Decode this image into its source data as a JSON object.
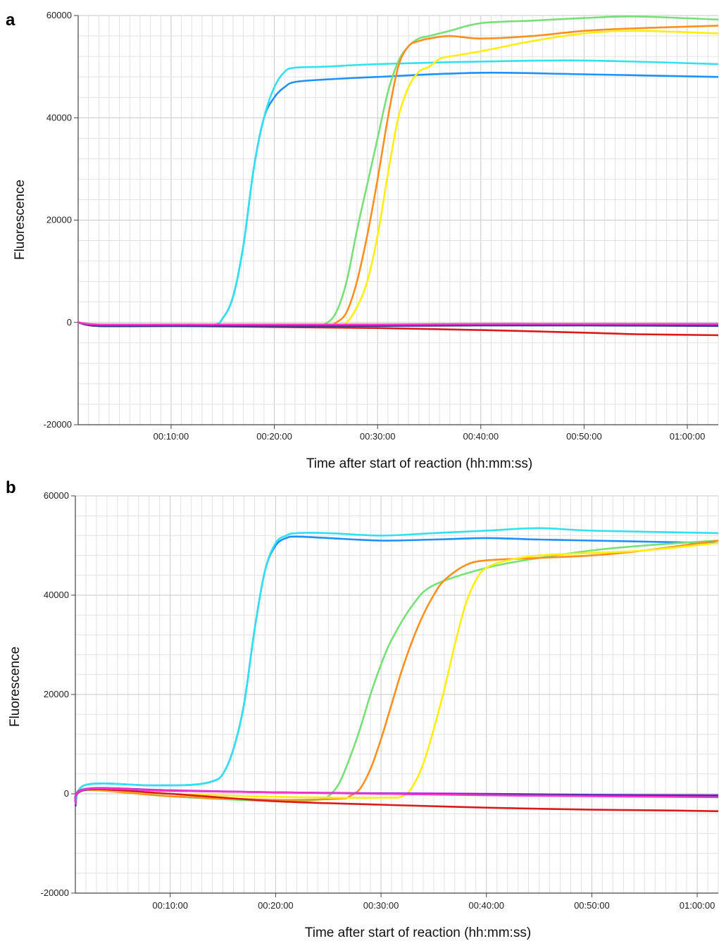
{
  "chart_data": [
    {
      "type": "line",
      "panel": "a",
      "xlabel": "Time after start of reaction (hh:mm:ss)",
      "ylabel": "Fluorescence",
      "ylim": [
        -20000,
        60000
      ],
      "xlim": [
        1,
        63
      ],
      "grid": true,
      "yticks": [
        -20000,
        0,
        20000,
        40000,
        60000
      ],
      "yticklabels": [
        "-20000",
        "0",
        "20000",
        "40000",
        "60000"
      ],
      "xticks": [
        10,
        20,
        30,
        40,
        50,
        60
      ],
      "xticklabels": [
        "00:10:00",
        "00:20:00",
        "00:30:00",
        "00:40:00",
        "00:50:00",
        "01:00:00"
      ],
      "series": [
        {
          "color": "#1e90ff",
          "x": [
            1,
            3,
            10,
            14,
            15,
            16,
            17,
            18,
            19,
            20,
            21,
            22,
            25,
            30,
            40,
            50,
            63
          ],
          "y": [
            0,
            -700,
            -700,
            -500,
            800,
            5000,
            15000,
            30000,
            40000,
            44000,
            46000,
            47000,
            47500,
            48000,
            48800,
            48500,
            48000
          ]
        },
        {
          "color": "#33e0f0",
          "x": [
            1,
            3,
            10,
            14,
            15,
            16,
            17,
            18,
            19,
            20,
            21,
            22,
            25,
            30,
            40,
            50,
            63
          ],
          "y": [
            0,
            -700,
            -700,
            -500,
            800,
            5000,
            15000,
            30000,
            40000,
            46000,
            49000,
            49800,
            50000,
            50500,
            51000,
            51200,
            50500
          ]
        },
        {
          "color": "#77e077",
          "x": [
            1,
            3,
            10,
            20,
            24,
            25,
            26,
            27,
            28,
            29,
            30,
            31,
            32,
            33,
            34,
            35,
            37,
            40,
            45,
            50,
            55,
            63
          ],
          "y": [
            0,
            -700,
            -700,
            -700,
            -600,
            -200,
            2000,
            8000,
            18000,
            27000,
            36000,
            45000,
            51000,
            54000,
            55500,
            56000,
            57000,
            58500,
            59000,
            59500,
            59800,
            59200
          ]
        },
        {
          "color": "#ff9020",
          "x": [
            1,
            3,
            10,
            20,
            25,
            26,
            27,
            28,
            29,
            30,
            31,
            32,
            33,
            34,
            35,
            37,
            40,
            45,
            50,
            55,
            63
          ],
          "y": [
            0,
            -700,
            -700,
            -700,
            -600,
            0,
            2000,
            8000,
            17000,
            28000,
            40000,
            50000,
            54000,
            55000,
            55500,
            56000,
            55500,
            56000,
            57000,
            57500,
            58000
          ]
        },
        {
          "color": "#ffee10",
          "x": [
            1,
            3,
            10,
            20,
            26,
            27,
            28,
            29,
            30,
            31,
            32,
            33,
            34,
            35,
            36,
            37,
            40,
            45,
            50,
            55,
            63
          ],
          "y": [
            0,
            -700,
            -700,
            -700,
            -600,
            0,
            3000,
            8000,
            17000,
            29000,
            40000,
            46000,
            49000,
            50000,
            51500,
            52000,
            53000,
            55000,
            56500,
            57000,
            56500
          ]
        },
        {
          "color": "#dd1a1a",
          "x": [
            1,
            3,
            10,
            20,
            30,
            40,
            50,
            55,
            63
          ],
          "y": [
            0,
            -700,
            -700,
            -900,
            -1100,
            -1500,
            -2000,
            -2300,
            -2500
          ]
        },
        {
          "color": "#9a1ae0",
          "x": [
            1,
            3,
            10,
            20,
            30,
            40,
            50,
            63
          ],
          "y": [
            0,
            -600,
            -600,
            -600,
            -600,
            -500,
            -500,
            -500
          ]
        },
        {
          "color": "#3b3b9a",
          "x": [
            1,
            3,
            10,
            20,
            30,
            40,
            50,
            63
          ],
          "y": [
            0,
            -700,
            -700,
            -700,
            -700,
            -600,
            -600,
            -700
          ]
        },
        {
          "color": "#ff33cc",
          "x": [
            1,
            3,
            10,
            20,
            30,
            40,
            50,
            63
          ],
          "y": [
            0,
            -400,
            -400,
            -400,
            -400,
            -300,
            -300,
            -300
          ]
        }
      ]
    },
    {
      "type": "line",
      "panel": "b",
      "xlabel": "Time after start of reaction (hh:mm:ss)",
      "ylabel": "Fluorescence",
      "ylim": [
        -20000,
        60000
      ],
      "xlim": [
        1,
        62
      ],
      "grid": true,
      "yticks": [
        -20000,
        0,
        20000,
        40000,
        60000
      ],
      "yticklabels": [
        "-20000",
        "0",
        "20000",
        "40000",
        "60000"
      ],
      "xticks": [
        10,
        20,
        30,
        40,
        50,
        60
      ],
      "xticklabels": [
        "00:10:00",
        "00:20:00",
        "00:30:00",
        "00:40:00",
        "00:50:00",
        "01:00:00"
      ],
      "series": [
        {
          "color": "#1e90ff",
          "x": [
            1,
            2,
            8,
            12,
            14,
            15,
            16,
            17,
            18,
            19,
            20,
            21,
            22,
            25,
            30,
            35,
            40,
            45,
            50,
            62
          ],
          "y": [
            -2500,
            1800,
            1700,
            1800,
            2500,
            4000,
            9000,
            18000,
            33000,
            45000,
            50000,
            51500,
            51800,
            51500,
            51000,
            51200,
            51500,
            51200,
            51000,
            50500
          ]
        },
        {
          "color": "#33e0f0",
          "x": [
            1,
            2,
            8,
            12,
            14,
            15,
            16,
            17,
            18,
            19,
            20,
            21,
            22,
            25,
            30,
            35,
            40,
            45,
            50,
            62
          ],
          "y": [
            -2500,
            1800,
            1700,
            1800,
            2500,
            4000,
            9000,
            18000,
            33000,
            45000,
            50500,
            52000,
            52500,
            52500,
            52000,
            52500,
            53000,
            53500,
            53000,
            52500
          ]
        },
        {
          "color": "#77e077",
          "x": [
            1,
            2,
            10,
            20,
            24,
            25,
            26,
            27,
            28,
            29,
            30,
            31,
            33,
            35,
            40,
            45,
            50,
            55,
            62
          ],
          "y": [
            -2000,
            1000,
            -500,
            -1500,
            -1200,
            -500,
            2000,
            7000,
            13000,
            20000,
            26000,
            31000,
            38000,
            42000,
            45500,
            47500,
            49000,
            50000,
            51000
          ]
        },
        {
          "color": "#ff9020",
          "x": [
            1,
            2,
            10,
            20,
            26,
            27,
            28,
            29,
            30,
            31,
            32,
            33,
            34,
            35,
            36,
            38,
            40,
            45,
            50,
            55,
            62
          ],
          "y": [
            -2000,
            700,
            -500,
            -1200,
            -1000,
            -500,
            1000,
            5000,
            11000,
            18000,
            25000,
            31000,
            36000,
            40000,
            43000,
            46000,
            47000,
            47500,
            48000,
            49000,
            51000
          ]
        },
        {
          "color": "#ffee10",
          "x": [
            1,
            2,
            10,
            20,
            30,
            32,
            33,
            34,
            35,
            36,
            37,
            38,
            39,
            40,
            42,
            45,
            50,
            55,
            62
          ],
          "y": [
            -2000,
            700,
            0,
            -600,
            -800,
            -500,
            1500,
            6000,
            13000,
            21000,
            30000,
            38000,
            43000,
            45500,
            47000,
            48000,
            48500,
            49000,
            50500
          ]
        },
        {
          "color": "#dd1a1a",
          "x": [
            1,
            2,
            10,
            20,
            30,
            40,
            50,
            55,
            62
          ],
          "y": [
            -2000,
            800,
            0,
            -1500,
            -2200,
            -2800,
            -3200,
            -3300,
            -3500
          ]
        },
        {
          "color": "#9a1ae0",
          "x": [
            1,
            2,
            10,
            20,
            30,
            40,
            50,
            62
          ],
          "y": [
            -2000,
            1000,
            700,
            300,
            100,
            0,
            -200,
            -300
          ]
        },
        {
          "color": "#3b3b9a",
          "x": [
            1,
            2,
            10,
            20,
            30,
            40,
            50,
            62
          ],
          "y": [
            -2500,
            800,
            600,
            300,
            0,
            -200,
            -300,
            -400
          ]
        },
        {
          "color": "#ff33cc",
          "x": [
            1,
            2,
            10,
            20,
            30,
            40,
            50,
            62
          ],
          "y": [
            -2200,
            900,
            600,
            300,
            0,
            -300,
            -500,
            -700
          ]
        }
      ]
    }
  ],
  "panels": {
    "a": {
      "label": "a"
    },
    "b": {
      "label": "b"
    }
  }
}
